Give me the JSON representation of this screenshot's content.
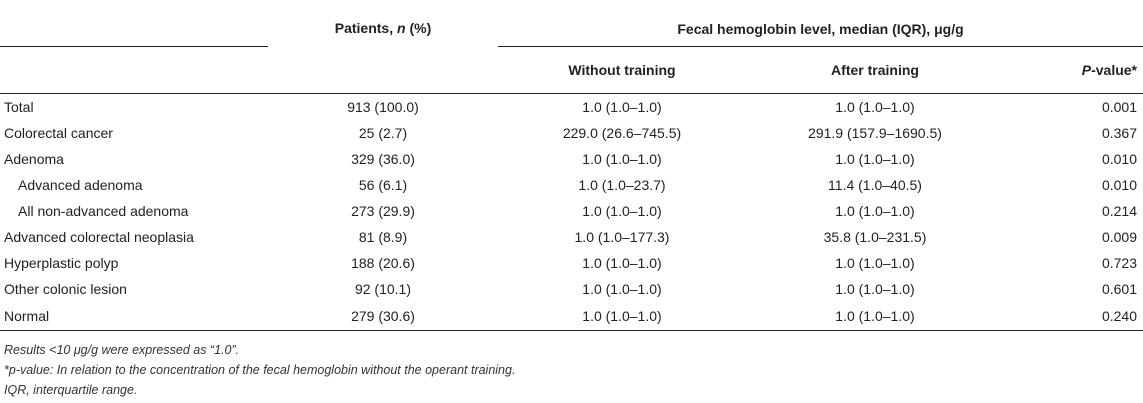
{
  "table": {
    "header": {
      "patients_prefix": "Patients, ",
      "patients_n": "n",
      "patients_suffix": " (%)",
      "group_title": "Fecal hemoglobin level, median (IQR), μg/g",
      "without_training": "Without training",
      "after_training": "After training",
      "pvalue_p": "P",
      "pvalue_suffix": "-value*"
    },
    "rows": [
      {
        "label": "Total",
        "patients": "913 (100.0)",
        "without": "1.0 (1.0–1.0)",
        "after": "1.0 (1.0–1.0)",
        "p": "0.001"
      },
      {
        "label": "Colorectal cancer",
        "patients": "25 (2.7)",
        "without": "229.0 (26.6–745.5)",
        "after": "291.9 (157.9–1690.5)",
        "p": "0.367"
      },
      {
        "label": "Adenoma",
        "patients": "329 (36.0)",
        "without": "1.0 (1.0–1.0)",
        "after": "1.0 (1.0–1.0)",
        "p": "0.010"
      },
      {
        "label": "Advanced adenoma",
        "patients": "56 (6.1)",
        "without": "1.0 (1.0–23.7)",
        "after": "11.4 (1.0–40.5)",
        "p": "0.010"
      },
      {
        "label": "All non-advanced adenoma",
        "patients": "273 (29.9)",
        "without": "1.0 (1.0–1.0)",
        "after": "1.0 (1.0–1.0)",
        "p": "0.214"
      },
      {
        "label": "Advanced colorectal neoplasia",
        "patients": "81 (8.9)",
        "without": "1.0 (1.0–177.3)",
        "after": "35.8 (1.0–231.5)",
        "p": "0.009"
      },
      {
        "label": "Hyperplastic polyp",
        "patients": "188 (20.6)",
        "without": "1.0 (1.0–1.0)",
        "after": "1.0 (1.0–1.0)",
        "p": "0.723"
      },
      {
        "label": "Other colonic lesion",
        "patients": "92 (10.1)",
        "without": "1.0 (1.0–1.0)",
        "after": "1.0 (1.0–1.0)",
        "p": "0.601"
      },
      {
        "label": "Normal",
        "patients": "279 (30.6)",
        "without": "1.0 (1.0–1.0)",
        "after": "1.0 (1.0–1.0)",
        "p": "0.240"
      }
    ]
  },
  "notes": {
    "note1": "Results <10 μg/g were expressed as “1.0”.",
    "note2": "*p-value: In relation to the concentration of the fecal hemoglobin without the operant training.",
    "note3": "IQR, interquartile range."
  }
}
